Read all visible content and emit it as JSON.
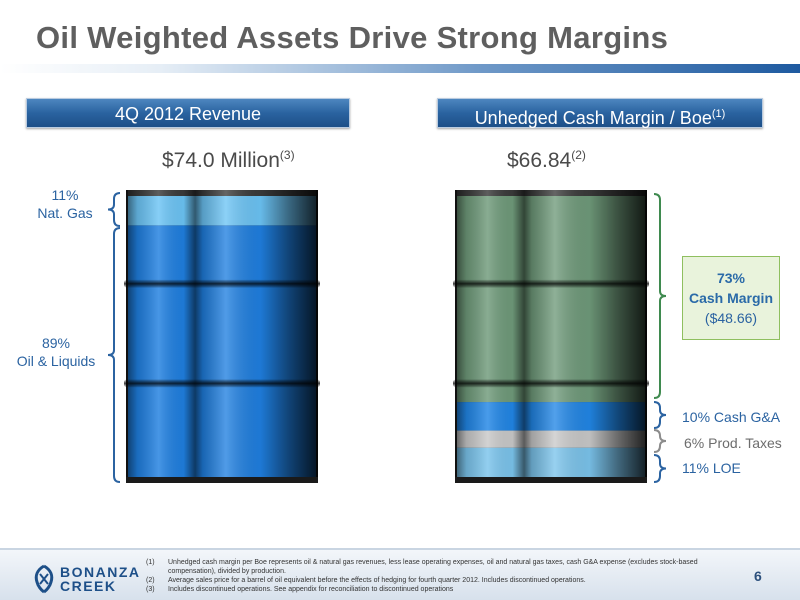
{
  "title": "Oil Weighted Assets Drive Strong Margins",
  "left_panel": {
    "header": "4Q 2012 Revenue",
    "value": "$74.0 Million",
    "value_note": "(3)"
  },
  "right_panel": {
    "header": "Unhedged Cash Margin / Boe",
    "header_note": "(1)",
    "value": "$66.84",
    "value_note": "(2)"
  },
  "colors": {
    "oil_blue": "#1f7fe0",
    "gas_light_blue": "#6cc4f5",
    "margin_green": "#6f9a7a",
    "cash_ga_blue": "#2186e6",
    "prod_tax_gray": "#c9c9c9",
    "loe_light_blue": "#7bc4ec",
    "bracket_blue": "#2b63a1",
    "bracket_green": "#3f8a4f",
    "bracket_gray": "#8c8c8c"
  },
  "chart_data": [
    {
      "type": "stacked-bar",
      "title": "4Q 2012 Revenue",
      "total_label": "$74.0 Million",
      "segments": [
        {
          "pct_text": "89%",
          "name": "Oil & Liquids",
          "value": 89,
          "color": "#1f7fe0"
        },
        {
          "pct_text": "11%",
          "name": "Nat. Gas",
          "value": 11,
          "color": "#6cc4f5"
        }
      ]
    },
    {
      "type": "stacked-bar",
      "title": "Unhedged Cash Margin / Boe",
      "total_label": "$66.84",
      "segments": [
        {
          "pct_text": "11%",
          "name": "LOE",
          "value": 11,
          "color": "#7bc4ec"
        },
        {
          "pct_text": "6%",
          "name": "Prod. Taxes",
          "value": 6,
          "color": "#c9c9c9"
        },
        {
          "pct_text": "10%",
          "name": "Cash G&A",
          "value": 10,
          "color": "#2186e6"
        },
        {
          "pct_text": "73%",
          "name": "Cash Margin",
          "value": 73,
          "amount": "($48.66)",
          "color": "#6f9a7a"
        }
      ]
    }
  ],
  "footer": {
    "logo_line1": "BONANZA",
    "logo_line2": "CREEK",
    "footnotes": [
      {
        "num": "(1)",
        "text": "Unhedged cash margin per Boe represents oil & natural gas revenues, less lease operating expenses, oil and natural gas taxes, cash G&A expense (excludes stock-based compensation), divided by production."
      },
      {
        "num": "(2)",
        "text": "Average sales price for a barrel of oil equivalent before the effects of hedging for fourth quarter 2012. Includes discontinued operations."
      },
      {
        "num": "(3)",
        "text": "Includes discontinued operations. See appendix for reconciliation to discontinued operations"
      }
    ],
    "page_number": "6"
  }
}
